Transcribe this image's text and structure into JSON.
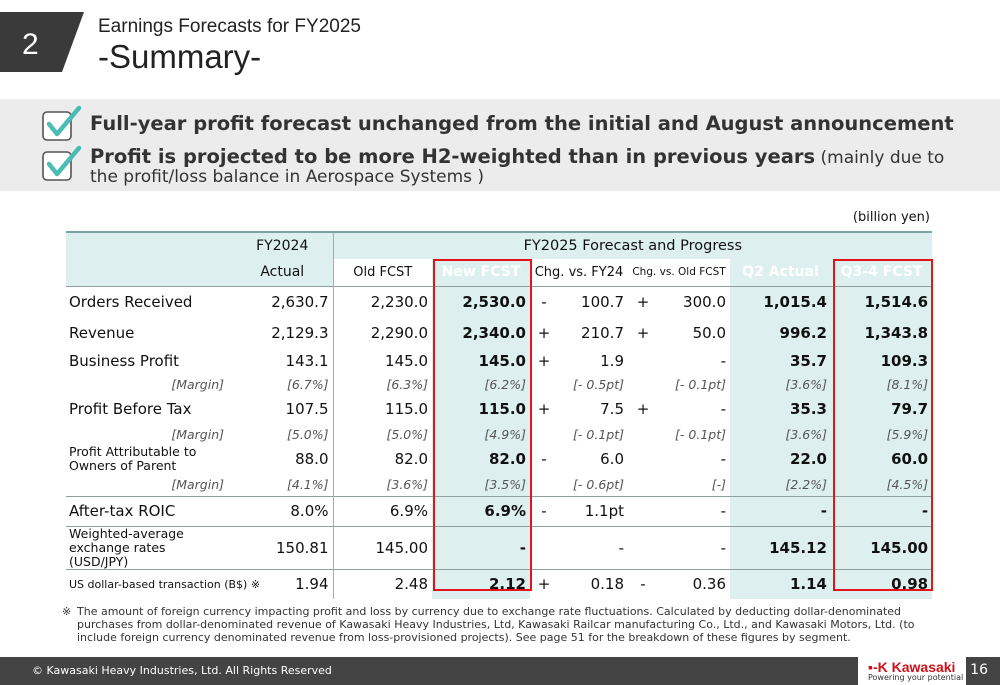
{
  "section": {
    "number": "2"
  },
  "title": {
    "line1": "Earnings Forecasts for FY2025",
    "line2": "-Summary-"
  },
  "bullets": {
    "b1": "Full-year profit forecast unchanged from the initial and August announcement",
    "b2_bold": "Profit is projected to be more H2-weighted than in previous years",
    "b2_normal": " (mainly due to",
    "b2_line2": "the profit/loss balance in Aerospace Systems )"
  },
  "unit": "(billion yen)",
  "table": {
    "header": {
      "fy2024": "FY2024",
      "actual": "Actual",
      "fy2025": "FY2025 Forecast and Progress",
      "old_fcst": "Old FCST",
      "new_fcst": "New FCST",
      "chg_fy24": "Chg. vs. FY24",
      "chg_old": "Chg. vs. Old FCST",
      "q2_actual": "Q2 Actual",
      "q34_fcst": "Q3-4 FCST"
    },
    "rows": [
      {
        "label": "Orders Received",
        "fy24": "2,630.7",
        "old": "2,230.0",
        "new": "2,530.0",
        "s1": "-",
        "c1": "100.7",
        "s2": "+",
        "c2": "300.0",
        "q2": "1,015.4",
        "q34": "1,514.6"
      },
      {
        "label": "Revenue",
        "fy24": "2,129.3",
        "old": "2,290.0",
        "new": "2,340.0",
        "s1": "+",
        "c1": "210.7",
        "s2": "+",
        "c2": "50.0",
        "q2": "996.2",
        "q34": "1,343.8"
      },
      {
        "label": "Business Profit",
        "fy24": "143.1",
        "old": "145.0",
        "new": "145.0",
        "s1": "+",
        "c1": "1.9",
        "s2": "",
        "c2": "-",
        "q2": "35.7",
        "q34": "109.3"
      },
      {
        "label": "[Margin]",
        "fy24": "[6.7%]",
        "old": "[6.3%]",
        "new": "[6.2%]",
        "s1": "",
        "c1": "[- 0.5pt]",
        "s2": "",
        "c2": "[- 0.1pt]",
        "q2": "[3.6%]",
        "q34": "[8.1%]"
      },
      {
        "label": "Profit Before Tax",
        "fy24": "107.5",
        "old": "115.0",
        "new": "115.0",
        "s1": "+",
        "c1": "7.5",
        "s2": "+",
        "c2": "-",
        "q2": "35.3",
        "q34": "79.7"
      },
      {
        "label": "[Margin]",
        "fy24": "[5.0%]",
        "old": "[5.0%]",
        "new": "[4.9%]",
        "s1": "",
        "c1": "[- 0.1pt]",
        "s2": "",
        "c2": "[- 0.1pt]",
        "q2": "[3.6%]",
        "q34": "[5.9%]"
      },
      {
        "label": "Profit Attributable to Owners of Parent",
        "fy24": "88.0",
        "old": "82.0",
        "new": "82.0",
        "s1": "-",
        "c1": "6.0",
        "s2": "",
        "c2": "-",
        "q2": "22.0",
        "q34": "60.0"
      },
      {
        "label": "[Margin]",
        "fy24": "[4.1%]",
        "old": "[3.6%]",
        "new": "[3.5%]",
        "s1": "",
        "c1": "[- 0.6pt]",
        "s2": "",
        "c2": "[-]",
        "q2": "[2.2%]",
        "q34": "[4.5%]"
      },
      {
        "label": "After-tax ROIC",
        "fy24": "8.0%",
        "old": "6.9%",
        "new": "6.9%",
        "s1": "-",
        "c1": "1.1pt",
        "s2": "",
        "c2": "-",
        "q2": "-",
        "q34": "-"
      },
      {
        "label": "Weighted-average exchange rates (USD/JPY)",
        "fy24": "150.81",
        "old": "145.00",
        "new": "-",
        "s1": "",
        "c1": "-",
        "s2": "",
        "c2": "-",
        "q2": "145.12",
        "q34": "145.00"
      },
      {
        "label": "US dollar-based transaction (B$) ※",
        "fy24": "1.94",
        "old": "2.48",
        "new": "2.12",
        "s1": "+",
        "c1": "0.18",
        "s2": "-",
        "c2": "0.36",
        "q2": "1.14",
        "q34": "0.98"
      }
    ]
  },
  "note": {
    "mark": "※",
    "text": "The amount of foreign currency impacting profit and loss by currency due to exchange rate fluctuations. Calculated by deducting dollar-denominated purchases from dollar-denominated revenue of Kawasaki Heavy Industries, Ltd, Kawasaki Railcar manufacturing Co., Ltd., and Kawasaki Motors, Ltd. (to include foreign currency denominated revenue from loss-provisioned projects). See page 51 for the breakdown of these figures by segment."
  },
  "footer": {
    "copyright": "© Kawasaki Heavy Industries, Ltd. All Rights Reserved",
    "page": "16",
    "logo": "Kawasaki",
    "tagline": "Powering your potential"
  }
}
